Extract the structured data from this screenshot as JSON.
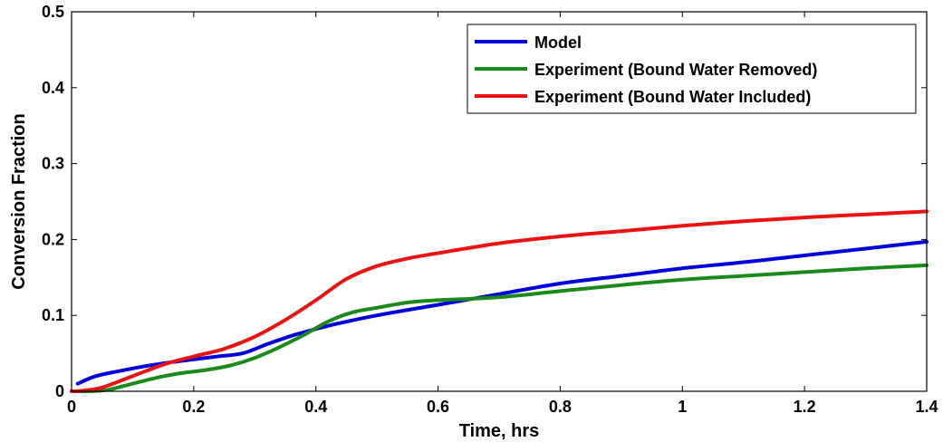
{
  "chart_data": {
    "type": "line",
    "xlabel": "Time, hrs",
    "ylabel": "Conversion Fraction",
    "xlim": [
      0,
      1.4
    ],
    "ylim": [
      0,
      0.5
    ],
    "xticks": [
      0,
      0.2,
      0.4,
      0.6,
      0.8,
      1,
      1.2,
      1.4
    ],
    "xtick_labels": [
      "0",
      "0.2",
      "0.4",
      "0.6",
      "0.8",
      "1",
      "1.2",
      "1.4"
    ],
    "yticks": [
      0,
      0.1,
      0.2,
      0.3,
      0.4,
      0.5
    ],
    "ytick_labels": [
      "0",
      "0.1",
      "0.2",
      "0.3",
      "0.4",
      "0.5"
    ],
    "grid": false,
    "legend_position": "top-right",
    "series": [
      {
        "name": "Model",
        "color": "#0000dd",
        "x": [
          0.01,
          0.04,
          0.08,
          0.12,
          0.16,
          0.2,
          0.24,
          0.28,
          0.32,
          0.36,
          0.4,
          0.44,
          0.5,
          0.6,
          0.7,
          0.8,
          0.9,
          1.0,
          1.1,
          1.2,
          1.3,
          1.4
        ],
        "y": [
          0.01,
          0.02,
          0.027,
          0.033,
          0.038,
          0.042,
          0.046,
          0.05,
          0.062,
          0.073,
          0.082,
          0.09,
          0.1,
          0.114,
          0.128,
          0.142,
          0.152,
          0.162,
          0.17,
          0.179,
          0.188,
          0.197
        ]
      },
      {
        "name": "Experiment (Bound Water Removed)",
        "color": "#1a8a1a",
        "x": [
          0.0,
          0.03,
          0.06,
          0.1,
          0.14,
          0.18,
          0.22,
          0.26,
          0.3,
          0.34,
          0.38,
          0.42,
          0.46,
          0.5,
          0.55,
          0.6,
          0.7,
          0.8,
          0.9,
          1.0,
          1.1,
          1.2,
          1.3,
          1.4
        ],
        "y": [
          0.0,
          0.0,
          0.002,
          0.01,
          0.018,
          0.024,
          0.028,
          0.034,
          0.044,
          0.058,
          0.074,
          0.092,
          0.104,
          0.11,
          0.117,
          0.12,
          0.124,
          0.132,
          0.14,
          0.147,
          0.152,
          0.157,
          0.162,
          0.166
        ]
      },
      {
        "name": "Experiment (Bound Water Included)",
        "color": "#ee1111",
        "x": [
          0.0,
          0.02,
          0.05,
          0.1,
          0.15,
          0.2,
          0.25,
          0.3,
          0.35,
          0.4,
          0.45,
          0.5,
          0.55,
          0.6,
          0.7,
          0.8,
          0.9,
          1.0,
          1.1,
          1.2,
          1.3,
          1.4
        ],
        "y": [
          0.0,
          0.001,
          0.005,
          0.02,
          0.035,
          0.046,
          0.056,
          0.072,
          0.094,
          0.12,
          0.148,
          0.165,
          0.175,
          0.182,
          0.195,
          0.204,
          0.211,
          0.218,
          0.224,
          0.229,
          0.233,
          0.237
        ]
      }
    ]
  }
}
